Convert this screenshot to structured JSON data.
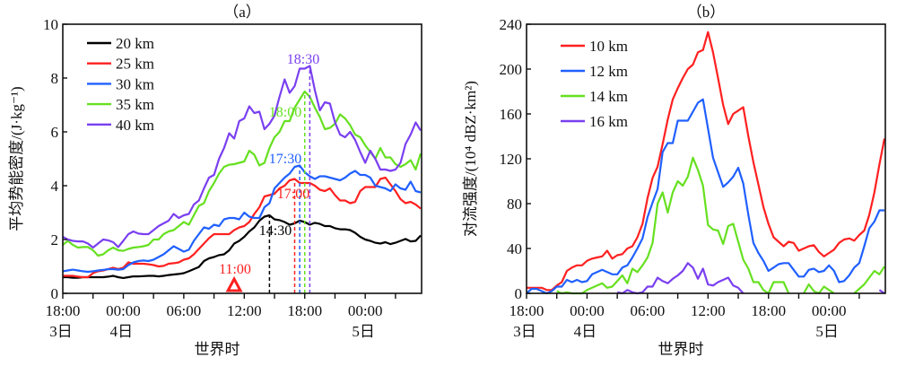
{
  "chart_data": [
    {
      "type": "line",
      "panel_label": "（a）",
      "xlabel": "世界时",
      "ylabel": "平均势能密度/(J·kg⁻¹)",
      "ylim": [
        0,
        10
      ],
      "yticks": [
        "0",
        "2",
        "4",
        "6",
        "8",
        "10"
      ],
      "xtick_labels": [
        "18:00",
        "00:00",
        "06:00",
        "12:00",
        "18:00",
        "00:00"
      ],
      "day_labels": [
        {
          "label": "3日",
          "at": "3日18:00"
        },
        {
          "label": "4日",
          "at": "4日00:00"
        },
        {
          "label": "5日",
          "at": "5日00:00"
        }
      ],
      "xlim": [
        "3日18:00",
        "5日05:30"
      ],
      "legend_position": "top-left",
      "grid": false,
      "x": [
        "3日18:00",
        "3日18:30",
        "3日19:00",
        "3日19:30",
        "3日20:00",
        "3日20:30",
        "3日21:00",
        "3日21:30",
        "3日22:00",
        "3日22:30",
        "3日23:00",
        "3日23:30",
        "4日00:00",
        "4日00:30",
        "4日01:00",
        "4日01:30",
        "4日02:00",
        "4日02:30",
        "4日03:00",
        "4日03:30",
        "4日04:00",
        "4日04:30",
        "4日05:00",
        "4日05:30",
        "4日06:00",
        "4日06:30",
        "4日07:00",
        "4日07:30",
        "4日08:00",
        "4日08:30",
        "4日09:00",
        "4日09:30",
        "4日10:00",
        "4日10:30",
        "4日11:00",
        "4日11:30",
        "4日12:00",
        "4日12:30",
        "4日13:00",
        "4日13:30",
        "4日14:00",
        "4日14:30",
        "4日15:00",
        "4日15:30",
        "4日16:00",
        "4日16:30",
        "4日17:00",
        "4日17:30",
        "4日18:00",
        "4日18:30",
        "4日19:00",
        "4日19:30",
        "4日20:00",
        "4日20:30",
        "4日21:00",
        "4日21:30",
        "4日22:00",
        "4日22:30",
        "4日23:00",
        "4日23:30",
        "5日00:00",
        "5日00:30",
        "5日01:00",
        "5日01:30",
        "5日02:00",
        "5日02:30",
        "5日03:00",
        "5日03:30",
        "5日04:00",
        "5日04:30",
        "5日05:00",
        "5日05:30"
      ],
      "series": [
        {
          "name": "20 km",
          "color": "#000000",
          "values": [
            0.6,
            0.6,
            0.58,
            0.58,
            0.6,
            0.6,
            0.6,
            0.6,
            0.6,
            0.62,
            0.65,
            0.6,
            0.57,
            0.6,
            0.63,
            0.63,
            0.64,
            0.65,
            0.65,
            0.63,
            0.65,
            0.68,
            0.7,
            0.72,
            0.75,
            0.82,
            0.9,
            0.98,
            1.2,
            1.3,
            1.35,
            1.42,
            1.45,
            1.6,
            1.85,
            1.95,
            2.1,
            2.3,
            2.45,
            2.7,
            2.85,
            2.9,
            2.75,
            2.72,
            2.65,
            2.55,
            2.6,
            2.7,
            2.65,
            2.55,
            2.62,
            2.58,
            2.5,
            2.5,
            2.42,
            2.38,
            2.38,
            2.35,
            2.25,
            2.1,
            2.0,
            1.95,
            1.88,
            1.85,
            1.9,
            1.83,
            1.88,
            1.95,
            2.02,
            1.93,
            1.95,
            2.15
          ]
        },
        {
          "name": "25 km",
          "color": "#ff2020",
          "values": [
            0.65,
            0.65,
            0.65,
            0.62,
            0.6,
            0.6,
            0.75,
            0.82,
            0.85,
            0.9,
            0.95,
            0.9,
            0.95,
            1.15,
            1.1,
            1.1,
            1.1,
            1.08,
            1.05,
            1.0,
            1.02,
            1.1,
            1.12,
            1.15,
            1.25,
            1.3,
            1.45,
            1.65,
            1.85,
            2.05,
            2.2,
            2.2,
            2.2,
            2.2,
            2.35,
            2.45,
            2.5,
            2.65,
            2.95,
            3.2,
            3.6,
            3.65,
            3.7,
            3.9,
            4.0,
            4.2,
            4.25,
            4.1,
            4.1,
            4.1,
            4.0,
            3.85,
            3.8,
            3.9,
            3.65,
            3.45,
            3.45,
            3.35,
            3.4,
            3.8,
            3.95,
            3.95,
            3.95,
            4.25,
            4.3,
            4.05,
            3.8,
            3.5,
            3.35,
            3.4,
            3.3,
            3.15
          ]
        },
        {
          "name": "30 km",
          "color": "#2060ff",
          "values": [
            0.82,
            0.85,
            0.88,
            0.85,
            0.82,
            0.8,
            0.82,
            0.85,
            0.87,
            0.9,
            0.9,
            0.88,
            0.9,
            1.05,
            1.15,
            1.2,
            1.22,
            1.2,
            1.25,
            1.35,
            1.45,
            1.6,
            1.75,
            1.65,
            1.55,
            1.62,
            1.95,
            2.2,
            2.45,
            2.4,
            2.55,
            2.5,
            2.75,
            2.8,
            2.8,
            2.75,
            3.0,
            2.85,
            2.8,
            2.8,
            3.2,
            3.35,
            3.9,
            4.1,
            4.3,
            4.45,
            4.7,
            4.75,
            4.5,
            4.35,
            4.25,
            4.35,
            4.35,
            4.3,
            4.25,
            4.2,
            4.3,
            4.45,
            4.55,
            4.4,
            4.4,
            4.3,
            4.0,
            3.95,
            3.9,
            3.8,
            4.05,
            3.9,
            3.85,
            4.15,
            3.8,
            3.75
          ]
        },
        {
          "name": "35 km",
          "color": "#66e020",
          "values": [
            1.8,
            1.95,
            1.8,
            1.7,
            1.72,
            1.72,
            1.6,
            1.4,
            1.45,
            1.6,
            1.7,
            1.6,
            1.58,
            1.65,
            1.7,
            1.72,
            1.75,
            1.8,
            2.0,
            2.0,
            2.2,
            2.3,
            2.35,
            2.5,
            2.65,
            2.55,
            2.9,
            3.25,
            3.35,
            3.8,
            4.1,
            4.45,
            4.7,
            4.78,
            4.8,
            4.85,
            4.9,
            5.3,
            5.15,
            4.75,
            4.85,
            5.4,
            5.8,
            6.0,
            6.4,
            6.4,
            6.9,
            7.2,
            7.5,
            7.3,
            6.9,
            6.55,
            6.1,
            6.15,
            6.3,
            6.65,
            6.5,
            6.25,
            5.9,
            5.8,
            5.5,
            5.25,
            5.0,
            5.4,
            5.05,
            5.05,
            4.8,
            4.7,
            4.8,
            4.95,
            4.6,
            5.2
          ]
        },
        {
          "name": "40 km",
          "color": "#7a3ff0",
          "values": [
            2.1,
            2.0,
            1.95,
            1.93,
            1.93,
            1.85,
            1.7,
            1.85,
            2.0,
            1.97,
            1.9,
            1.72,
            1.95,
            2.2,
            2.3,
            2.22,
            2.2,
            2.2,
            2.35,
            2.5,
            2.6,
            2.7,
            2.95,
            2.8,
            2.9,
            2.95,
            3.3,
            3.45,
            3.9,
            4.3,
            4.4,
            5.0,
            5.4,
            5.95,
            5.75,
            6.4,
            6.5,
            6.95,
            6.7,
            6.75,
            6.1,
            6.3,
            6.6,
            7.3,
            7.95,
            7.45,
            7.7,
            8.35,
            8.35,
            8.45,
            7.55,
            6.8,
            7.1,
            7.05,
            6.35,
            5.9,
            5.8,
            6.0,
            5.7,
            5.25,
            4.85,
            5.3,
            5.0,
            4.6,
            4.6,
            4.55,
            4.6,
            4.85,
            5.55,
            5.9,
            6.35,
            6.05
          ]
        }
      ],
      "annotations": [
        {
          "label": "14:30",
          "color": "#000000",
          "at": "4日14:30",
          "value": 2.9,
          "dashed_line": true
        },
        {
          "label": "17:00",
          "color": "#ff2020",
          "at": "4日17:00",
          "value": 4.25,
          "dashed_line": true
        },
        {
          "label": "17:30",
          "color": "#2060ff",
          "at": "4日17:30",
          "value": 4.75,
          "dashed_line": true
        },
        {
          "label": "18:00",
          "color": "#66e020",
          "at": "4日18:00",
          "value": 7.5,
          "dashed_line": true
        },
        {
          "label": "18:30",
          "color": "#7a3ff0",
          "at": "4日18:30",
          "value": 8.45,
          "dashed_line": true
        },
        {
          "label": "11:00",
          "color": "#ff2020",
          "at": "4日11:00",
          "marker": "triangle"
        }
      ]
    },
    {
      "type": "line",
      "panel_label": "（b）",
      "xlabel": "世界时",
      "ylabel": "对流强度/(10⁴ dBZ·km²)",
      "ylim": [
        0,
        240
      ],
      "yticks": [
        "0",
        "40",
        "80",
        "120",
        "160",
        "200",
        "240"
      ],
      "xtick_labels": [
        "18:00",
        "00:00",
        "06:00",
        "12:00",
        "18:00",
        "00:00"
      ],
      "day_labels": [
        {
          "label": "3日",
          "at": "3日18:00"
        },
        {
          "label": "4日",
          "at": "4日00:00"
        },
        {
          "label": "5日",
          "at": "5日00:00"
        }
      ],
      "xlim": [
        "3日18:00",
        "5日05:30"
      ],
      "legend_position": "top-left",
      "grid": false,
      "x": [
        "3日18:00",
        "3日18:30",
        "3日19:00",
        "3日19:30",
        "3日20:00",
        "3日20:30",
        "3日21:00",
        "3日21:30",
        "3日22:00",
        "3日22:30",
        "3日23:00",
        "3日23:30",
        "4日00:00",
        "4日00:30",
        "4日01:00",
        "4日01:30",
        "4日02:00",
        "4日02:30",
        "4日03:00",
        "4日03:30",
        "4日04:00",
        "4日04:30",
        "4日05:00",
        "4日05:30",
        "4日06:00",
        "4日06:30",
        "4日07:00",
        "4日07:30",
        "4日08:00",
        "4日08:30",
        "4日09:00",
        "4日09:30",
        "4日10:00",
        "4日10:30",
        "4日11:00",
        "4日11:30",
        "4日12:00",
        "4日12:30",
        "4日13:00",
        "4日13:30",
        "4日14:00",
        "4日14:30",
        "4日15:00",
        "4日15:30",
        "4日16:00",
        "4日16:30",
        "4日17:00",
        "4日17:30",
        "4日18:00",
        "4日18:30",
        "4日19:00",
        "4日19:30",
        "4日20:00",
        "4日20:30",
        "4日21:00",
        "4日21:30",
        "4日22:00",
        "4日22:30",
        "4日23:00",
        "4日23:30",
        "5日00:00",
        "5日00:30",
        "5日01:00",
        "5日01:30",
        "5日02:00",
        "5日02:30",
        "5日03:00",
        "5日03:30",
        "5日04:00",
        "5日04:30",
        "5日05:00",
        "5日05:30"
      ],
      "series": [
        {
          "name": "10 km",
          "color": "#ff2020",
          "values": [
            5,
            5,
            5,
            5,
            3,
            3,
            7,
            10,
            20,
            23,
            25,
            25,
            29,
            31,
            32,
            33,
            38,
            31,
            34,
            35,
            40,
            42,
            50,
            62,
            85,
            103,
            113,
            133,
            155,
            173,
            183,
            192,
            200,
            204,
            215,
            217,
            233,
            215,
            192,
            168,
            151,
            160,
            163,
            166,
            140,
            117,
            97,
            77,
            62,
            50,
            46,
            42,
            46,
            45,
            38,
            40,
            42,
            43,
            37,
            33,
            36,
            39,
            45,
            48,
            49,
            47,
            52,
            56,
            70,
            90,
            115,
            138
          ]
        },
        {
          "name": "12 km",
          "color": "#2060ff",
          "values": [
            0,
            4,
            4,
            2,
            0,
            2,
            6,
            6,
            12,
            10,
            12,
            10,
            11,
            17,
            19,
            21,
            19,
            17,
            17,
            23,
            25,
            32,
            40,
            49,
            68,
            81,
            93,
            126,
            134,
            134,
            154,
            154,
            154,
            162,
            170,
            173,
            147,
            121,
            108,
            95,
            99,
            104,
            112,
            98,
            70,
            45,
            36,
            29,
            20,
            23,
            26,
            27,
            27,
            21,
            15,
            15,
            21,
            22,
            19,
            20,
            25,
            20,
            10,
            11,
            16,
            23,
            27,
            42,
            58,
            64,
            74,
            74
          ]
        },
        {
          "name": "14 km",
          "color": "#66e020",
          "values": [
            null,
            null,
            null,
            null,
            null,
            null,
            2,
            0,
            1,
            0,
            0,
            0,
            3,
            5,
            7,
            9,
            5,
            6,
            11,
            16,
            9,
            22,
            19,
            25,
            32,
            45,
            80,
            90,
            72,
            90,
            100,
            96,
            104,
            121,
            110,
            96,
            61,
            57,
            56,
            44,
            60,
            62,
            46,
            30,
            22,
            10,
            10,
            3,
            0,
            10,
            10,
            10,
            0,
            null,
            null,
            0,
            8,
            2,
            0,
            6,
            3,
            0,
            null,
            null,
            null,
            0,
            4,
            8,
            14,
            20,
            17,
            24
          ]
        },
        {
          "name": "16 km",
          "color": "#7a3ff0",
          "values": [
            null,
            null,
            null,
            null,
            null,
            null,
            null,
            null,
            null,
            null,
            null,
            null,
            null,
            null,
            null,
            null,
            null,
            null,
            1,
            0,
            3,
            1,
            0,
            1,
            6,
            6,
            14,
            11,
            9,
            13,
            16,
            20,
            27,
            23,
            13,
            22,
            8,
            7,
            10,
            12,
            14,
            7,
            5,
            0,
            null,
            null,
            null,
            null,
            null,
            null,
            null,
            null,
            null,
            null,
            null,
            null,
            null,
            null,
            null,
            null,
            null,
            null,
            null,
            null,
            null,
            null,
            null,
            null,
            null,
            null,
            3,
            0
          ]
        }
      ]
    }
  ]
}
